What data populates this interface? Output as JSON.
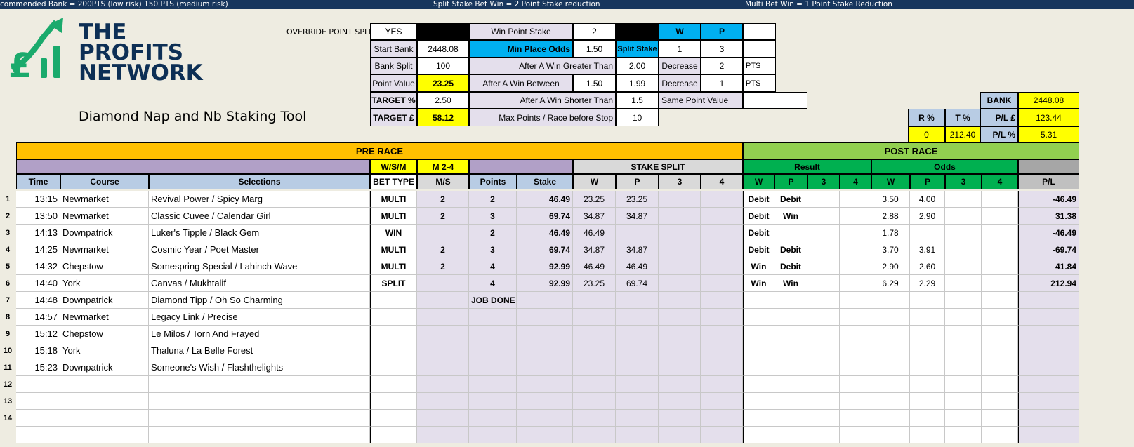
{
  "topbar": {
    "left": "commended Bank = 200PTS (low risk) 150 PTS (medium risk)",
    "center": "Split Stake Bet Win = 2 Point Stake reduction",
    "right": "Multi Bet Win = 1 Point  Stake Reduction",
    "color": "#17365d"
  },
  "logo": {
    "line1": "THE",
    "line2": "PROFITS",
    "line3": "NETWORK",
    "green": "#1aaa6c",
    "navy": "#0d2f55"
  },
  "title": "Diamond Nap and Nb Staking Tool",
  "config": {
    "override_label": "OVERRIDE POINT SPLIT",
    "override_value": "YES",
    "win_point_stake_label": "Win Point Stake",
    "win_point_stake": "2",
    "w_label": "W",
    "p_label": "P",
    "start_bank_label": "Start Bank",
    "start_bank": "2448.08",
    "min_place_odds_label": "Min Place Odds",
    "min_place_odds": "1.50",
    "split_stake_label": "Split Stake",
    "split_w": "1",
    "split_p": "3",
    "bank_split_label": "Bank Split",
    "bank_split": "100",
    "after_win_greater_label": "After A Win Greater Than",
    "after_win_greater": "2.00",
    "decrease_label": "Decrease",
    "decrease_1": "2",
    "pts_label": "PTS",
    "point_value_label": "Point Value",
    "point_value": "23.25",
    "after_win_between_label": "After A Win Between",
    "between_low": "1.50",
    "between_high": "1.99",
    "decrease_2": "1",
    "target_pct_label": "TARGET %",
    "target_pct": "2.50",
    "after_win_shorter_label": "After A Win Shorter Than",
    "after_win_shorter": "1.5",
    "same_point_label": "Same Point Value",
    "target_gbp_label": "TARGET £",
    "target_gbp": "58.12",
    "max_points_label": "Max Points / Race before Stop",
    "max_points": "10"
  },
  "summary": {
    "bank_label": "BANK",
    "bank": "2448.08",
    "r_label": "R %",
    "t_label": "T %",
    "pl_gbp_label": "P/L  £",
    "pl_gbp": "123.44",
    "r_value": "0",
    "t_value": "212.40",
    "pl_pct_label": "P/L %",
    "pl_pct": "5.31"
  },
  "headers": {
    "pre_race": "PRE RACE",
    "post_race": "POST RACE",
    "wsm": "W/S/M",
    "m24": "M 2-4",
    "stake_split": "STAKE SPLIT",
    "result": "Result",
    "odds": "Odds",
    "cols": [
      "Time",
      "Course",
      "Selections",
      "BET TYPE",
      "M/S",
      "Points",
      "Stake",
      "W",
      "P",
      "3",
      "4",
      "W",
      "P",
      "3",
      "4",
      "W",
      "P",
      "3",
      "4",
      "P/L"
    ]
  },
  "rows": [
    [
      "13:15",
      "Newmarket",
      "Revival Power / Spicy Marg",
      "MULTI",
      "2",
      "2",
      "46.49",
      "23.25",
      "23.25",
      "",
      "",
      "Debit",
      "Debit",
      "",
      "",
      "3.50",
      "4.00",
      "",
      "",
      "-46.49"
    ],
    [
      "13:50",
      "Newmarket",
      "Classic Cuvee / Calendar Girl",
      "MULTI",
      "2",
      "3",
      "69.74",
      "34.87",
      "34.87",
      "",
      "",
      "Debit",
      "Win",
      "",
      "",
      "2.88",
      "2.90",
      "",
      "",
      "31.38"
    ],
    [
      "14:13",
      "Downpatrick",
      "Luker's Tipple / Black Gem",
      "WIN",
      "",
      "2",
      "46.49",
      "46.49",
      "",
      "",
      "",
      "Debit",
      "",
      "",
      "",
      "1.78",
      "",
      "",
      "",
      "-46.49"
    ],
    [
      "14:25",
      "Newmarket",
      "Cosmic Year / Poet Master",
      "MULTI",
      "2",
      "3",
      "69.74",
      "34.87",
      "34.87",
      "",
      "",
      "Debit",
      "Debit",
      "",
      "",
      "3.70",
      "3.91",
      "",
      "",
      "-69.74"
    ],
    [
      "14:32",
      "Chepstow",
      "Somespring Special / Lahinch Wave",
      "MULTI",
      "2",
      "4",
      "92.99",
      "46.49",
      "46.49",
      "",
      "",
      "Win",
      "Debit",
      "",
      "",
      "2.90",
      "2.60",
      "",
      "",
      "41.84"
    ],
    [
      "14:40",
      "York",
      "Canvas / Mukhtalif",
      "SPLIT",
      "",
      "4",
      "92.99",
      "23.25",
      "69.74",
      "",
      "",
      "Win",
      "Win",
      "",
      "",
      "6.29",
      "2.29",
      "",
      "",
      "212.94"
    ],
    [
      "14:48",
      "Downpatrick",
      "Diamond Tipp / Oh So Charming",
      "",
      "",
      "JOB DONE",
      "",
      "",
      "",
      "",
      "",
      "",
      "",
      "",
      "",
      "",
      "",
      "",
      "",
      ""
    ],
    [
      "14:57",
      "Newmarket",
      "Legacy Link / Precise",
      "",
      "",
      "",
      "",
      "",
      "",
      "",
      "",
      "",
      "",
      "",
      "",
      "",
      "",
      "",
      "",
      ""
    ],
    [
      "15:12",
      "Chepstow",
      "Le Milos / Torn And Frayed",
      "",
      "",
      "",
      "",
      "",
      "",
      "",
      "",
      "",
      "",
      "",
      "",
      "",
      "",
      "",
      "",
      ""
    ],
    [
      "15:18",
      "York",
      "Thaluna / La Belle Forest",
      "",
      "",
      "",
      "",
      "",
      "",
      "",
      "",
      "",
      "",
      "",
      "",
      "",
      "",
      "",
      "",
      ""
    ],
    [
      "15:23",
      "Downpatrick",
      "Someone's Wish / Flashthelights",
      "",
      "",
      "",
      "",
      "",
      "",
      "",
      "",
      "",
      "",
      "",
      "",
      "",
      "",
      "",
      "",
      ""
    ],
    [
      "",
      "",
      "",
      "",
      "",
      "",
      "",
      "",
      "",
      "",
      "",
      "",
      "",
      "",
      "",
      "",
      "",
      "",
      "",
      ""
    ],
    [
      "",
      "",
      "",
      "",
      "",
      "",
      "",
      "",
      "",
      "",
      "",
      "",
      "",
      "",
      "",
      "",
      "",
      "",
      "",
      ""
    ],
    [
      "",
      "",
      "",
      "",
      "",
      "",
      "",
      "",
      "",
      "",
      "",
      "",
      "",
      "",
      "",
      "",
      "",
      "",
      "",
      ""
    ],
    [
      "",
      "",
      "",
      "",
      "",
      "",
      "",
      "",
      "",
      "",
      "",
      "",
      "",
      "",
      "",
      "",
      "",
      "",
      "",
      ""
    ]
  ],
  "row_numbers": [
    "1",
    "2",
    "3",
    "4",
    "5",
    "6",
    "7",
    "8",
    "9",
    "10",
    "11",
    "12",
    "13",
    "14",
    ""
  ],
  "colors": {
    "pre_race": "#ffc000",
    "post_race": "#92d050",
    "green": "#00b050",
    "lavender": "#e4dfec",
    "purple": "#b1a0c7",
    "header_blue": "#b8cce4",
    "cyan": "#00b0f0",
    "yellow": "#ffff00",
    "gray": "#a6a6a6"
  }
}
